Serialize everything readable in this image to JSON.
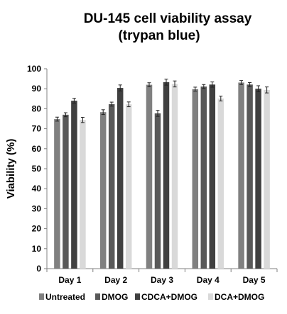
{
  "chart_data": {
    "type": "bar",
    "title_line1": "DU-145 cell viability assay",
    "title_line2": "(trypan blue)",
    "ylabel": "Viability (%)",
    "xlabel": "",
    "ylim": [
      0,
      100
    ],
    "yticks": [
      0,
      10,
      20,
      30,
      40,
      50,
      60,
      70,
      80,
      90,
      100
    ],
    "grid": false,
    "legend_position": "bottom",
    "categories": [
      "Day 1",
      "Day 2",
      "Day 3",
      "Day 4",
      "Day 5"
    ],
    "series": [
      {
        "name": "Untreated",
        "color": "#808080",
        "values": [
          74.8,
          78.3,
          92.0,
          89.8,
          93.1
        ],
        "errors": [
          1.0,
          1.2,
          1.0,
          1.0,
          1.0
        ]
      },
      {
        "name": "DMOG",
        "color": "#595959",
        "values": [
          77.0,
          82.3,
          77.7,
          91.1,
          92.1
        ],
        "errors": [
          1.0,
          1.0,
          1.5,
          1.0,
          1.0
        ]
      },
      {
        "name": "CDCA+DMOG",
        "color": "#404040",
        "values": [
          84.0,
          90.4,
          93.3,
          92.1,
          90.0
        ],
        "errors": [
          1.2,
          1.5,
          1.5,
          1.3,
          1.5
        ]
      },
      {
        "name": "DCA+DMOG",
        "color": "#d9d9d9",
        "values": [
          74.4,
          82.2,
          92.4,
          85.1,
          89.4
        ],
        "errors": [
          1.3,
          1.2,
          1.5,
          1.2,
          1.5
        ]
      }
    ]
  }
}
